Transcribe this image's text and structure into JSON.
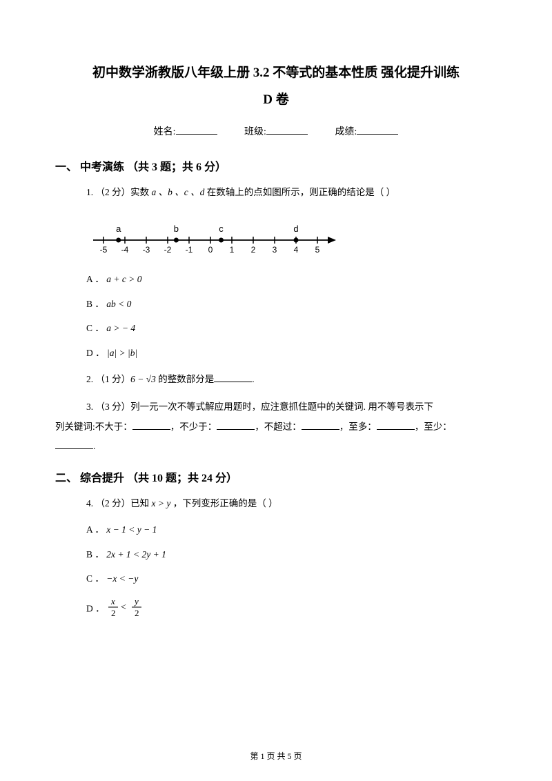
{
  "title_line1": "初中数学浙教版八年级上册 3.2 不等式的基本性质 强化提升训练",
  "title_line2": "D 卷",
  "info": {
    "name_label": "姓名:",
    "class_label": "班级:",
    "score_label": "成绩:"
  },
  "section1": {
    "header": "一、 中考演练 （共 3 题；共 6 分）",
    "q1": {
      "prefix": "1. （2 分）实数 ",
      "vars": "a 、b 、c 、d",
      "suffix": " 在数轴上的点如图所示，则正确的结论是（    ）",
      "optA": "A ． ",
      "optA_math": "a + c > 0",
      "optB": "B ． ",
      "optB_math": "ab < 0",
      "optC": "C ． ",
      "optC_math": "a > − 4",
      "optD": "D ． ",
      "optD_math": "|a| > |b|",
      "numberline": {
        "ticks": [
          "-5",
          "-4",
          "-3",
          "-2",
          "-1",
          "0",
          "1",
          "2",
          "3",
          "4",
          "5"
        ],
        "points": [
          {
            "label": "a",
            "pos": -4.3
          },
          {
            "label": "b",
            "pos": -1.6
          },
          {
            "label": "c",
            "pos": 0.5
          },
          {
            "label": "d",
            "pos": 4
          }
        ]
      }
    },
    "q2": {
      "prefix": "2. （1 分）",
      "math": "6 − √3",
      "suffix": " 的整数部分是",
      "tail": "."
    },
    "q3": {
      "line1": "3. （3 分）列一元一次不等式解应用题时，应注意抓住题中的关键词. 用不等号表示下",
      "line2_a": "列关键词:不大于：",
      "line2_b": "，不少于：",
      "line2_c": "，不超过：",
      "line2_d": "，至多：",
      "line2_e": "，至少：",
      "line3_tail": "."
    }
  },
  "section2": {
    "header": "二、 综合提升 （共 10 题；共 24 分）",
    "q4": {
      "prefix": "4. （2 分）已知 ",
      "math": "x > y",
      "suffix": " ，下列变形正确的是（    ）",
      "optA": "A ． ",
      "optA_math": "x − 1 < y − 1",
      "optB": "B ． ",
      "optB_math": "2x + 1 < 2y + 1",
      "optC": "C ． ",
      "optC_math": "−x < −y",
      "optD": "D ． "
    }
  },
  "footer": {
    "text_a": "第 ",
    "page_num": "1",
    "text_b": " 页 共 ",
    "total": "5",
    "text_c": " 页"
  },
  "colors": {
    "text": "#000000",
    "bg": "#ffffff"
  },
  "fontsize": {
    "title": 19,
    "section": 16,
    "body": 13.5,
    "footer": 12
  }
}
